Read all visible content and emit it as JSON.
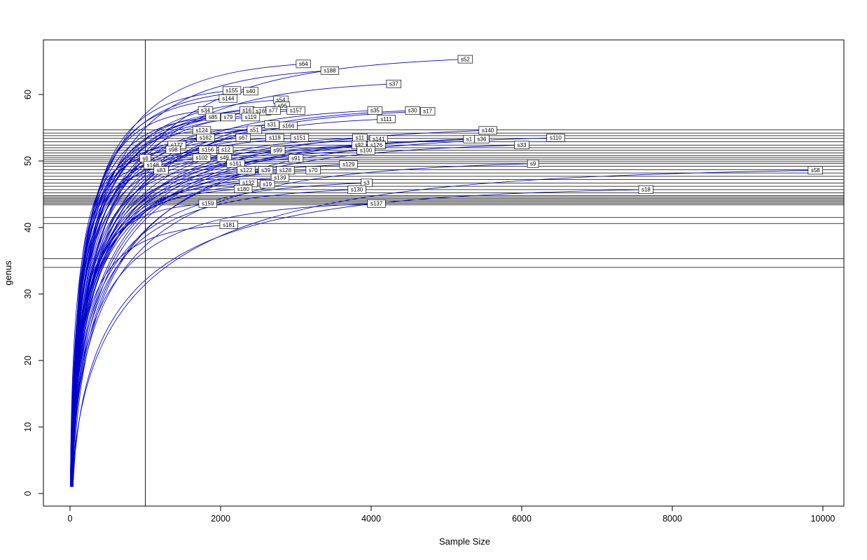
{
  "chart_data": {
    "type": "line",
    "title": "",
    "xlabel": "Sample Size",
    "ylabel": "genus",
    "x_ticks": [
      0,
      2000,
      4000,
      6000,
      8000,
      10000
    ],
    "y_ticks": [
      0,
      10,
      20,
      30,
      40,
      50,
      60
    ],
    "xlim": [
      -350,
      10280
    ],
    "ylim": [
      -1.9,
      68.2
    ],
    "grid": false,
    "legend": "none",
    "vline_x": 1000,
    "hlines": [
      54.7,
      54.2,
      53.8,
      53.4,
      52.9,
      52.4,
      52.0,
      51.6,
      51.2,
      50.8,
      50.5,
      50.2,
      49.9,
      49.6,
      49.2,
      48.7,
      48.2,
      47.7,
      47.2,
      46.7,
      46.2,
      45.7,
      45.2,
      44.8,
      44.6,
      44.4,
      44.2,
      44.0,
      43.8,
      43.6,
      43.4,
      41.5,
      40.6,
      35.3,
      34.0
    ],
    "colors": {
      "curve": "#0000cc",
      "refline": "#000000",
      "label_bg": "#ffffff",
      "label_border": "#000000",
      "axis": "#000000"
    },
    "series": [
      {
        "name": "s52",
        "end_x": 5250,
        "end_y": 65.3
      },
      {
        "name": "s64",
        "end_x": 3100,
        "end_y": 64.6
      },
      {
        "name": "s188",
        "end_x": 3450,
        "end_y": 63.6
      },
      {
        "name": "s37",
        "end_x": 4300,
        "end_y": 61.6
      },
      {
        "name": "s155",
        "end_x": 2150,
        "end_y": 60.6
      },
      {
        "name": "s40",
        "end_x": 2400,
        "end_y": 60.5
      },
      {
        "name": "s144",
        "end_x": 2100,
        "end_y": 59.4
      },
      {
        "name": "s54",
        "end_x": 2800,
        "end_y": 59.2
      },
      {
        "name": "s96",
        "end_x": 2820,
        "end_y": 58.3
      },
      {
        "name": "s34",
        "end_x": 1800,
        "end_y": 57.6
      },
      {
        "name": "s16",
        "end_x": 2350,
        "end_y": 57.6
      },
      {
        "name": "s165",
        "end_x": 2550,
        "end_y": 57.5
      },
      {
        "name": "s77",
        "end_x": 2700,
        "end_y": 57.6
      },
      {
        "name": "s157",
        "end_x": 3000,
        "end_y": 57.6
      },
      {
        "name": "s35",
        "end_x": 4050,
        "end_y": 57.6
      },
      {
        "name": "s30",
        "end_x": 4550,
        "end_y": 57.6
      },
      {
        "name": "s17",
        "end_x": 4750,
        "end_y": 57.5
      },
      {
        "name": "s85",
        "end_x": 1900,
        "end_y": 56.6
      },
      {
        "name": "s79",
        "end_x": 2100,
        "end_y": 56.6
      },
      {
        "name": "s119",
        "end_x": 2400,
        "end_y": 56.6
      },
      {
        "name": "s111",
        "end_x": 4200,
        "end_y": 56.3
      },
      {
        "name": "s31",
        "end_x": 2680,
        "end_y": 55.5
      },
      {
        "name": "s166",
        "end_x": 2900,
        "end_y": 55.3
      },
      {
        "name": "s124",
        "end_x": 1750,
        "end_y": 54.6
      },
      {
        "name": "s51",
        "end_x": 2450,
        "end_y": 54.7
      },
      {
        "name": "s140",
        "end_x": 5550,
        "end_y": 54.6
      },
      {
        "name": "s162",
        "end_x": 1800,
        "end_y": 53.5
      },
      {
        "name": "s67",
        "end_x": 2300,
        "end_y": 53.5
      },
      {
        "name": "s118",
        "end_x": 2720,
        "end_y": 53.5
      },
      {
        "name": "s151",
        "end_x": 3050,
        "end_y": 53.5
      },
      {
        "name": "s11",
        "end_x": 3850,
        "end_y": 53.5
      },
      {
        "name": "s141",
        "end_x": 4100,
        "end_y": 53.3
      },
      {
        "name": "s1",
        "end_x": 5300,
        "end_y": 53.3
      },
      {
        "name": "s36",
        "end_x": 5470,
        "end_y": 53.3
      },
      {
        "name": "s110",
        "end_x": 6450,
        "end_y": 53.5
      },
      {
        "name": "s177",
        "end_x": 1420,
        "end_y": 52.4
      },
      {
        "name": "s92",
        "end_x": 3840,
        "end_y": 52.4
      },
      {
        "name": "s126",
        "end_x": 4070,
        "end_y": 52.4
      },
      {
        "name": "s33",
        "end_x": 6000,
        "end_y": 52.4
      },
      {
        "name": "s98",
        "end_x": 1370,
        "end_y": 51.7
      },
      {
        "name": "s156",
        "end_x": 1830,
        "end_y": 51.7
      },
      {
        "name": "s12",
        "end_x": 2070,
        "end_y": 51.7
      },
      {
        "name": "s99",
        "end_x": 2760,
        "end_y": 51.6
      },
      {
        "name": "s100",
        "end_x": 3930,
        "end_y": 51.6
      },
      {
        "name": "s6",
        "end_x": 1000,
        "end_y": 50.4
      },
      {
        "name": "s102",
        "end_x": 1750,
        "end_y": 50.5
      },
      {
        "name": "s49",
        "end_x": 2050,
        "end_y": 50.5
      },
      {
        "name": "s91",
        "end_x": 3000,
        "end_y": 50.4
      },
      {
        "name": "s148",
        "end_x": 1100,
        "end_y": 49.4
      },
      {
        "name": "s161",
        "end_x": 2200,
        "end_y": 49.6
      },
      {
        "name": "s129",
        "end_x": 3700,
        "end_y": 49.5
      },
      {
        "name": "s9",
        "end_x": 6150,
        "end_y": 49.6
      },
      {
        "name": "s83",
        "end_x": 1210,
        "end_y": 48.6
      },
      {
        "name": "s122",
        "end_x": 2340,
        "end_y": 48.6
      },
      {
        "name": "s39",
        "end_x": 2600,
        "end_y": 48.6
      },
      {
        "name": "s128",
        "end_x": 2860,
        "end_y": 48.6
      },
      {
        "name": "s70",
        "end_x": 3230,
        "end_y": 48.6
      },
      {
        "name": "s58",
        "end_x": 9900,
        "end_y": 48.6
      },
      {
        "name": "s139",
        "end_x": 2790,
        "end_y": 47.5
      },
      {
        "name": "s132",
        "end_x": 2370,
        "end_y": 46.7
      },
      {
        "name": "s19",
        "end_x": 2620,
        "end_y": 46.5
      },
      {
        "name": "s3",
        "end_x": 3940,
        "end_y": 46.7
      },
      {
        "name": "s180",
        "end_x": 2300,
        "end_y": 45.8
      },
      {
        "name": "s130",
        "end_x": 3810,
        "end_y": 45.7
      },
      {
        "name": "s18",
        "end_x": 7650,
        "end_y": 45.7
      },
      {
        "name": "s159",
        "end_x": 1830,
        "end_y": 43.6
      },
      {
        "name": "s137",
        "end_x": 4070,
        "end_y": 43.6
      },
      {
        "name": "s181",
        "end_x": 2110,
        "end_y": 40.4
      }
    ]
  }
}
